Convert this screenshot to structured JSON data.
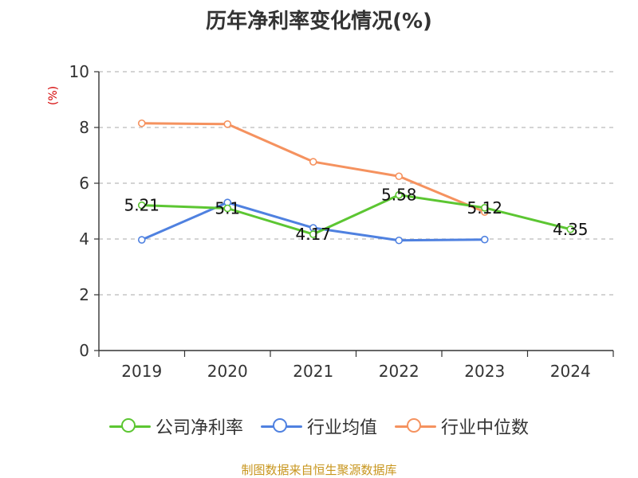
{
  "chart_data": {
    "type": "line",
    "title": "历年净利率变化情况(%)",
    "ylabel": "(%)",
    "categories": [
      "2019",
      "2020",
      "2021",
      "2022",
      "2023",
      "2024"
    ],
    "yticks": [
      "0",
      "2",
      "4",
      "6",
      "8",
      "10"
    ],
    "ylim": [
      0,
      10
    ],
    "grid": true,
    "legend": "bottom",
    "series": [
      {
        "name": "公司净利率",
        "color": "#5cc632",
        "values": [
          5.21,
          5.1,
          4.17,
          5.58,
          5.12,
          4.35
        ],
        "labels": [
          "5.21",
          "5.1",
          "4.17",
          "5.58",
          "5.12",
          "4.35"
        ]
      },
      {
        "name": "行业均值",
        "color": "#4f81e0",
        "values": [
          3.97,
          5.31,
          4.4,
          3.95,
          3.98,
          null
        ],
        "labels": []
      },
      {
        "name": "行业中位数",
        "color": "#f5925f",
        "values": [
          8.15,
          8.12,
          6.77,
          6.25,
          4.97,
          null
        ],
        "labels": []
      }
    ]
  },
  "footer": {
    "source": "制图数据来自恒生聚源数据库"
  }
}
